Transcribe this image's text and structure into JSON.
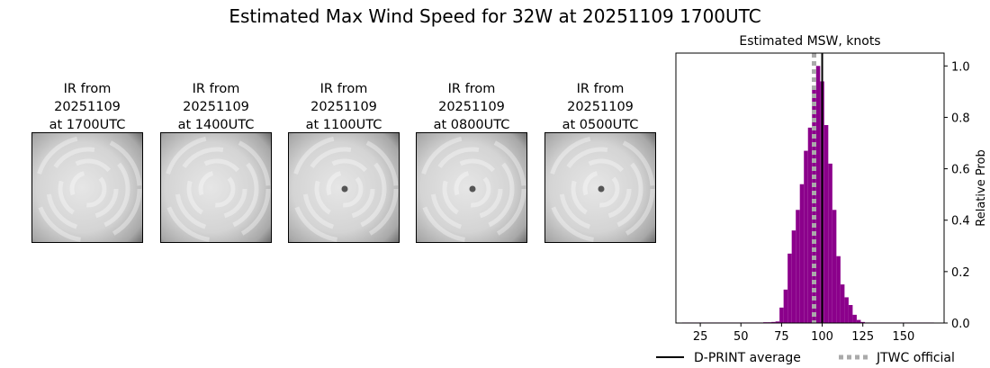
{
  "page_title": "Estimated Max Wind Speed for 32W at 20251109 1700UTC",
  "ir_images": [
    {
      "line1": "IR from",
      "line2": "20251109",
      "line3": "at 1700UTC",
      "eye": false
    },
    {
      "line1": "IR from",
      "line2": "20251109",
      "line3": "at 1400UTC",
      "eye": false
    },
    {
      "line1": "IR from",
      "line2": "20251109",
      "line3": "at 1100UTC",
      "eye": true
    },
    {
      "line1": "IR from",
      "line2": "20251109",
      "line3": "at 0800UTC",
      "eye": true
    },
    {
      "line1": "IR from",
      "line2": "20251109",
      "line3": "at 0500UTC",
      "eye": true
    }
  ],
  "chart_data": {
    "type": "bar",
    "title": "Estimated MSW, knots",
    "xlabel": "",
    "ylabel": "Relative Prob",
    "y_axis_side": "right",
    "xlim": [
      10,
      175
    ],
    "ylim": [
      0,
      1.05
    ],
    "xticks": [
      25,
      50,
      75,
      100,
      125,
      150
    ],
    "yticks": [
      0.0,
      0.2,
      0.4,
      0.6,
      0.8,
      1.0
    ],
    "bar_color": "#8b008b",
    "bin_width": 2.5,
    "bins": [
      {
        "x": 15,
        "y": 0.002
      },
      {
        "x": 17.5,
        "y": 0.002
      },
      {
        "x": 20,
        "y": 0.002
      },
      {
        "x": 22.5,
        "y": 0.002
      },
      {
        "x": 25,
        "y": 0.002
      },
      {
        "x": 27.5,
        "y": 0.002
      },
      {
        "x": 30,
        "y": 0.002
      },
      {
        "x": 32.5,
        "y": 0.002
      },
      {
        "x": 35,
        "y": 0.002
      },
      {
        "x": 37.5,
        "y": 0.002
      },
      {
        "x": 40,
        "y": 0.002
      },
      {
        "x": 42.5,
        "y": 0.002
      },
      {
        "x": 45,
        "y": 0.002
      },
      {
        "x": 47.5,
        "y": 0.002
      },
      {
        "x": 50,
        "y": 0.002
      },
      {
        "x": 52.5,
        "y": 0.002
      },
      {
        "x": 55,
        "y": 0.002
      },
      {
        "x": 57.5,
        "y": 0.002
      },
      {
        "x": 60,
        "y": 0.002
      },
      {
        "x": 62.5,
        "y": 0.002
      },
      {
        "x": 65,
        "y": 0.003
      },
      {
        "x": 67.5,
        "y": 0.003
      },
      {
        "x": 70,
        "y": 0.004
      },
      {
        "x": 72.5,
        "y": 0.006
      },
      {
        "x": 75,
        "y": 0.06
      },
      {
        "x": 77.5,
        "y": 0.13
      },
      {
        "x": 80,
        "y": 0.27
      },
      {
        "x": 82.5,
        "y": 0.36
      },
      {
        "x": 85,
        "y": 0.44
      },
      {
        "x": 87.5,
        "y": 0.54
      },
      {
        "x": 90,
        "y": 0.67
      },
      {
        "x": 92.5,
        "y": 0.76
      },
      {
        "x": 95,
        "y": 0.92
      },
      {
        "x": 97.5,
        "y": 1.0
      },
      {
        "x": 100,
        "y": 0.94
      },
      {
        "x": 102.5,
        "y": 0.77
      },
      {
        "x": 105,
        "y": 0.62
      },
      {
        "x": 107.5,
        "y": 0.44
      },
      {
        "x": 110,
        "y": 0.26
      },
      {
        "x": 112.5,
        "y": 0.15
      },
      {
        "x": 115,
        "y": 0.1
      },
      {
        "x": 117.5,
        "y": 0.07
      },
      {
        "x": 120,
        "y": 0.032
      },
      {
        "x": 122.5,
        "y": 0.012
      },
      {
        "x": 125,
        "y": 0.004
      },
      {
        "x": 127.5,
        "y": 0.002
      },
      {
        "x": 130,
        "y": 0.002
      },
      {
        "x": 132.5,
        "y": 0.002
      },
      {
        "x": 135,
        "y": 0.002
      },
      {
        "x": 137.5,
        "y": 0.002
      },
      {
        "x": 140,
        "y": 0.002
      },
      {
        "x": 142.5,
        "y": 0.002
      },
      {
        "x": 145,
        "y": 0.002
      },
      {
        "x": 147.5,
        "y": 0.002
      },
      {
        "x": 150,
        "y": 0.002
      },
      {
        "x": 152.5,
        "y": 0.002
      },
      {
        "x": 155,
        "y": 0.002
      },
      {
        "x": 157.5,
        "y": 0.002
      },
      {
        "x": 160,
        "y": 0.002
      },
      {
        "x": 162.5,
        "y": 0.002
      },
      {
        "x": 165,
        "y": 0.002
      },
      {
        "x": 167.5,
        "y": 0.002
      }
    ],
    "lines": [
      {
        "name": "D-PRINT average",
        "x": 100,
        "color": "#000000",
        "style": "solid"
      },
      {
        "name": "JTWC official",
        "x": 95,
        "color": "#aaaaaa",
        "style": "dotted"
      }
    ],
    "legend": "bottom"
  }
}
